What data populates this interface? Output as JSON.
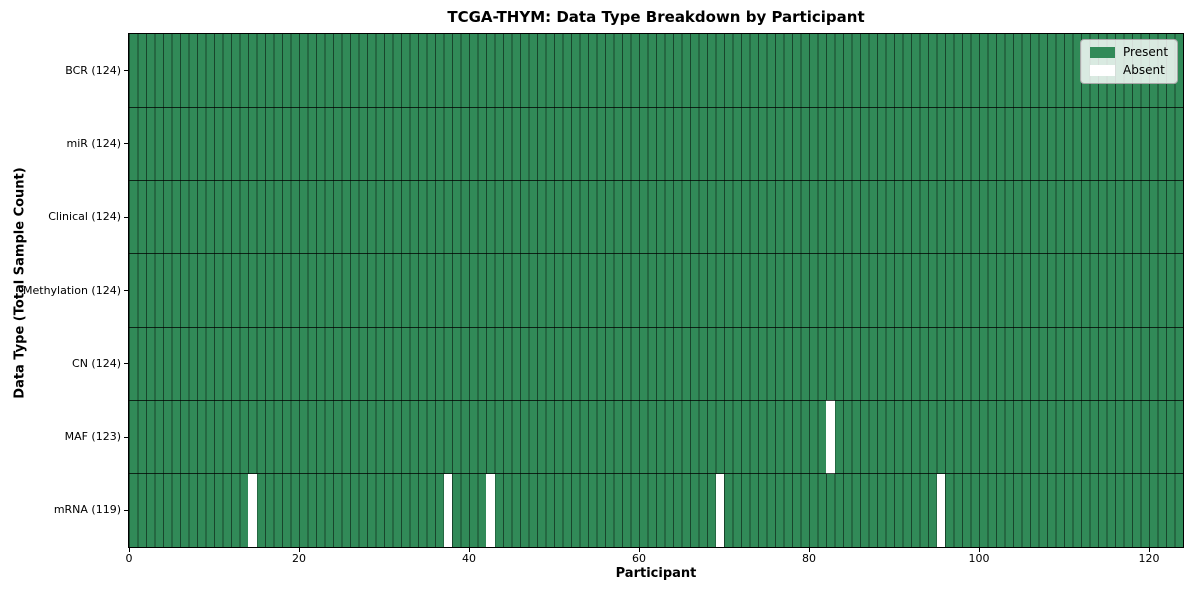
{
  "chart_data": {
    "type": "heatmap",
    "title": "TCGA-THYM: Data Type Breakdown by Participant",
    "xlabel": "Participant",
    "ylabel": "Data Type (Total Sample Count)",
    "n_participants": 124,
    "x_ticks": [
      0,
      20,
      40,
      60,
      80,
      100,
      120
    ],
    "x_range": [
      0,
      124
    ],
    "grid": true,
    "legend_position": "upper right",
    "legend": [
      {
        "name": "present",
        "label": "Present",
        "color": "#318a58"
      },
      {
        "name": "absent",
        "label": "Absent",
        "color": "#ffffff"
      }
    ],
    "rows": [
      {
        "name": "bcr",
        "label": "BCR (124)",
        "count": 124,
        "absent_participants": []
      },
      {
        "name": "mir",
        "label": "miR (124)",
        "count": 124,
        "absent_participants": []
      },
      {
        "name": "clinical",
        "label": "Clinical (124)",
        "count": 124,
        "absent_participants": []
      },
      {
        "name": "methylation",
        "label": "Methylation (124)",
        "count": 124,
        "absent_participants": []
      },
      {
        "name": "cn",
        "label": "CN (124)",
        "count": 124,
        "absent_participants": []
      },
      {
        "name": "maf",
        "label": "MAF (123)",
        "count": 123,
        "absent_participants": [
          82
        ]
      },
      {
        "name": "mrna",
        "label": "mRNA (119)",
        "count": 119,
        "absent_participants": [
          14,
          37,
          42,
          69,
          95
        ]
      }
    ],
    "colors": {
      "present": "#318a58",
      "absent": "#ffffff",
      "grid_line": "rgba(0,0,0,0.5)",
      "divider_line": "rgba(0,0,0,0.75)",
      "spine": "#000000",
      "figure_background": "#ffffff"
    }
  }
}
